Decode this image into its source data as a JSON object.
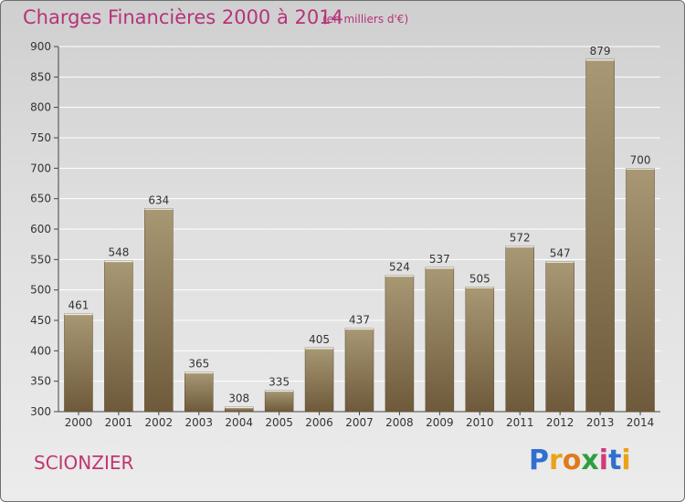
{
  "header": {
    "title": "Charges Financières 2000 à 2014",
    "subtitle": "(en milliers d'€)"
  },
  "footer": {
    "city": "SCIONZIER",
    "logo_text": "Proxiti",
    "logo_letters": [
      {
        "ch": "P",
        "color": "#2f6fd0"
      },
      {
        "ch": "r",
        "color": "#e8a317"
      },
      {
        "ch": "o",
        "color": "#e07a1a"
      },
      {
        "ch": "x",
        "color": "#2e9e3e"
      },
      {
        "ch": "i",
        "color": "#d13a7a"
      },
      {
        "ch": "t",
        "color": "#2f6fd0"
      },
      {
        "ch": "i",
        "color": "#e8a317"
      }
    ]
  },
  "colors": {
    "bar_top": "#a89874",
    "bar_bottom": "#6e5a3b",
    "grid": "#ffffff",
    "text": "#333333",
    "title": "#b5337a"
  },
  "chart_data": {
    "type": "bar",
    "title": "Charges Financières 2000 à 2014",
    "subtitle": "(en milliers d'€)",
    "xlabel": "",
    "ylabel": "",
    "categories": [
      "2000",
      "2001",
      "2002",
      "2003",
      "2004",
      "2005",
      "2006",
      "2007",
      "2008",
      "2009",
      "2010",
      "2011",
      "2012",
      "2013",
      "2014"
    ],
    "values": [
      461,
      548,
      634,
      365,
      308,
      335,
      405,
      437,
      524,
      537,
      505,
      572,
      547,
      879,
      700
    ],
    "ylim": [
      300,
      900
    ],
    "yticks": [
      300,
      350,
      400,
      450,
      500,
      550,
      600,
      650,
      700,
      750,
      800,
      850,
      900
    ],
    "grid": true,
    "legend": "none"
  }
}
